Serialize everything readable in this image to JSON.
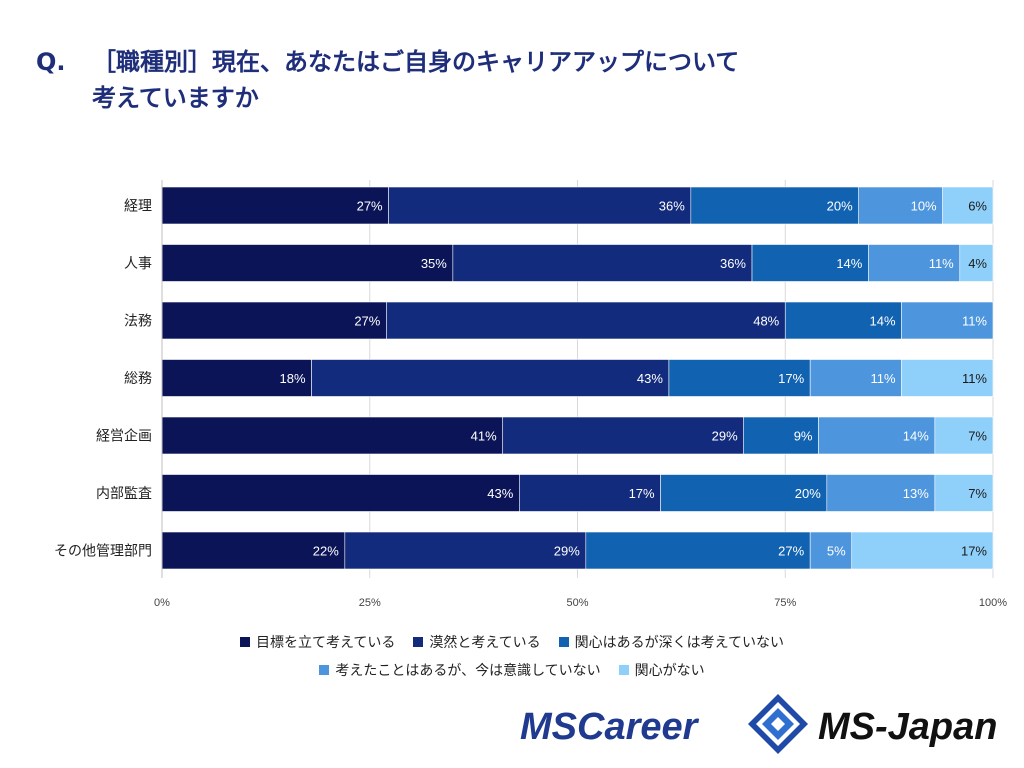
{
  "title": {
    "prefix": "Q.",
    "line1": "［職種別］現在、あなたはご自身のキャリアアップについて",
    "line2": "考えていますか"
  },
  "colors": [
    "#0c1458",
    "#132b7c",
    "#1162b0",
    "#4d95dc",
    "#8fd0fb"
  ],
  "chart_data": {
    "type": "bar",
    "orientation": "horizontal",
    "stacked": true,
    "percent_stacked": true,
    "categories": [
      "経理",
      "人事",
      "法務",
      "総務",
      "経営企画",
      "内部監査",
      "その他管理部門"
    ],
    "series": [
      {
        "name": "目標を立て考えている",
        "values": [
          27,
          35,
          27,
          18,
          41,
          43,
          22
        ]
      },
      {
        "name": "漠然と考えている",
        "values": [
          36,
          36,
          48,
          43,
          29,
          17,
          29
        ]
      },
      {
        "name": "関心はあるが深くは考えていない",
        "values": [
          20,
          14,
          14,
          17,
          9,
          20,
          27
        ]
      },
      {
        "name": "考えたことはあるが、今は意識していない",
        "values": [
          10,
          11,
          11,
          11,
          14,
          13,
          5
        ]
      },
      {
        "name": "関心がない",
        "values": [
          6,
          4,
          0,
          11,
          7,
          7,
          17
        ]
      }
    ],
    "xticks": [
      "0%",
      "25%",
      "50%",
      "75%",
      "100%"
    ],
    "xlim": [
      0,
      100
    ],
    "legend_position": "bottom"
  },
  "logos": {
    "left": "MSCareer",
    "right": "MS-Japan"
  }
}
